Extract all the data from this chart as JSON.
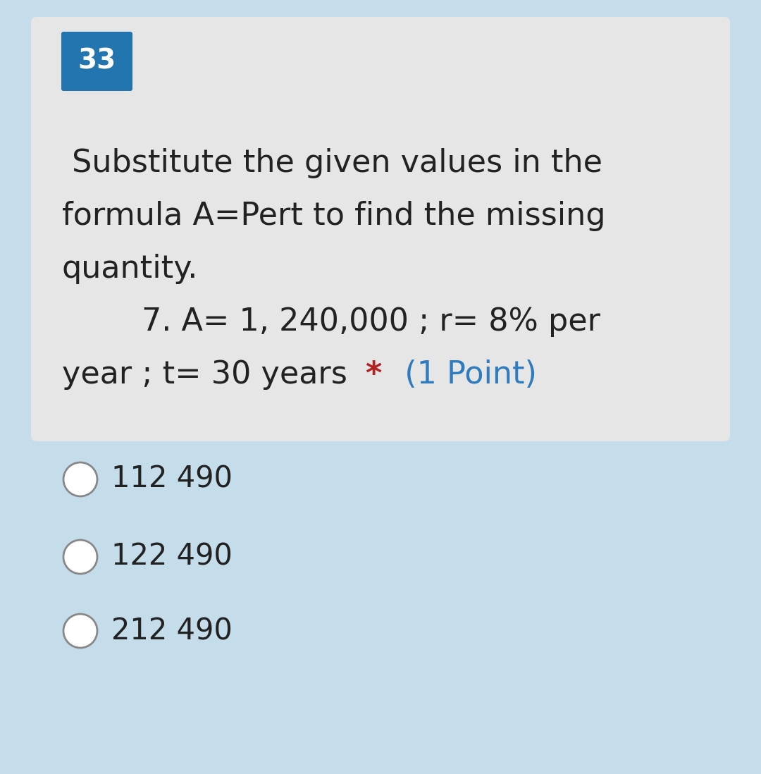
{
  "bg_color": "#c5dcea",
  "card_color": "#e6e6e6",
  "number_box_color": "#2275ae",
  "number_text": "33",
  "number_text_color": "#ffffff",
  "question_line1": " Substitute the given values in the",
  "question_line2": "formula A=Pert to find the missing",
  "question_line3": "quantity.",
  "subq_line1": "        7. A= 1, 240,000 ; r= 8% per",
  "subq_line2": "year ; t= 30 years ",
  "star_text": "*",
  "point_text": "  (1 Point)",
  "question_color": "#222222",
  "star_color": "#b22222",
  "point_color": "#2e7bbf",
  "options": [
    "112 490",
    "122 490",
    "212 490"
  ],
  "option_color": "#222222",
  "option_fontsize": 30,
  "question_fontsize": 32,
  "number_fontsize": 28
}
